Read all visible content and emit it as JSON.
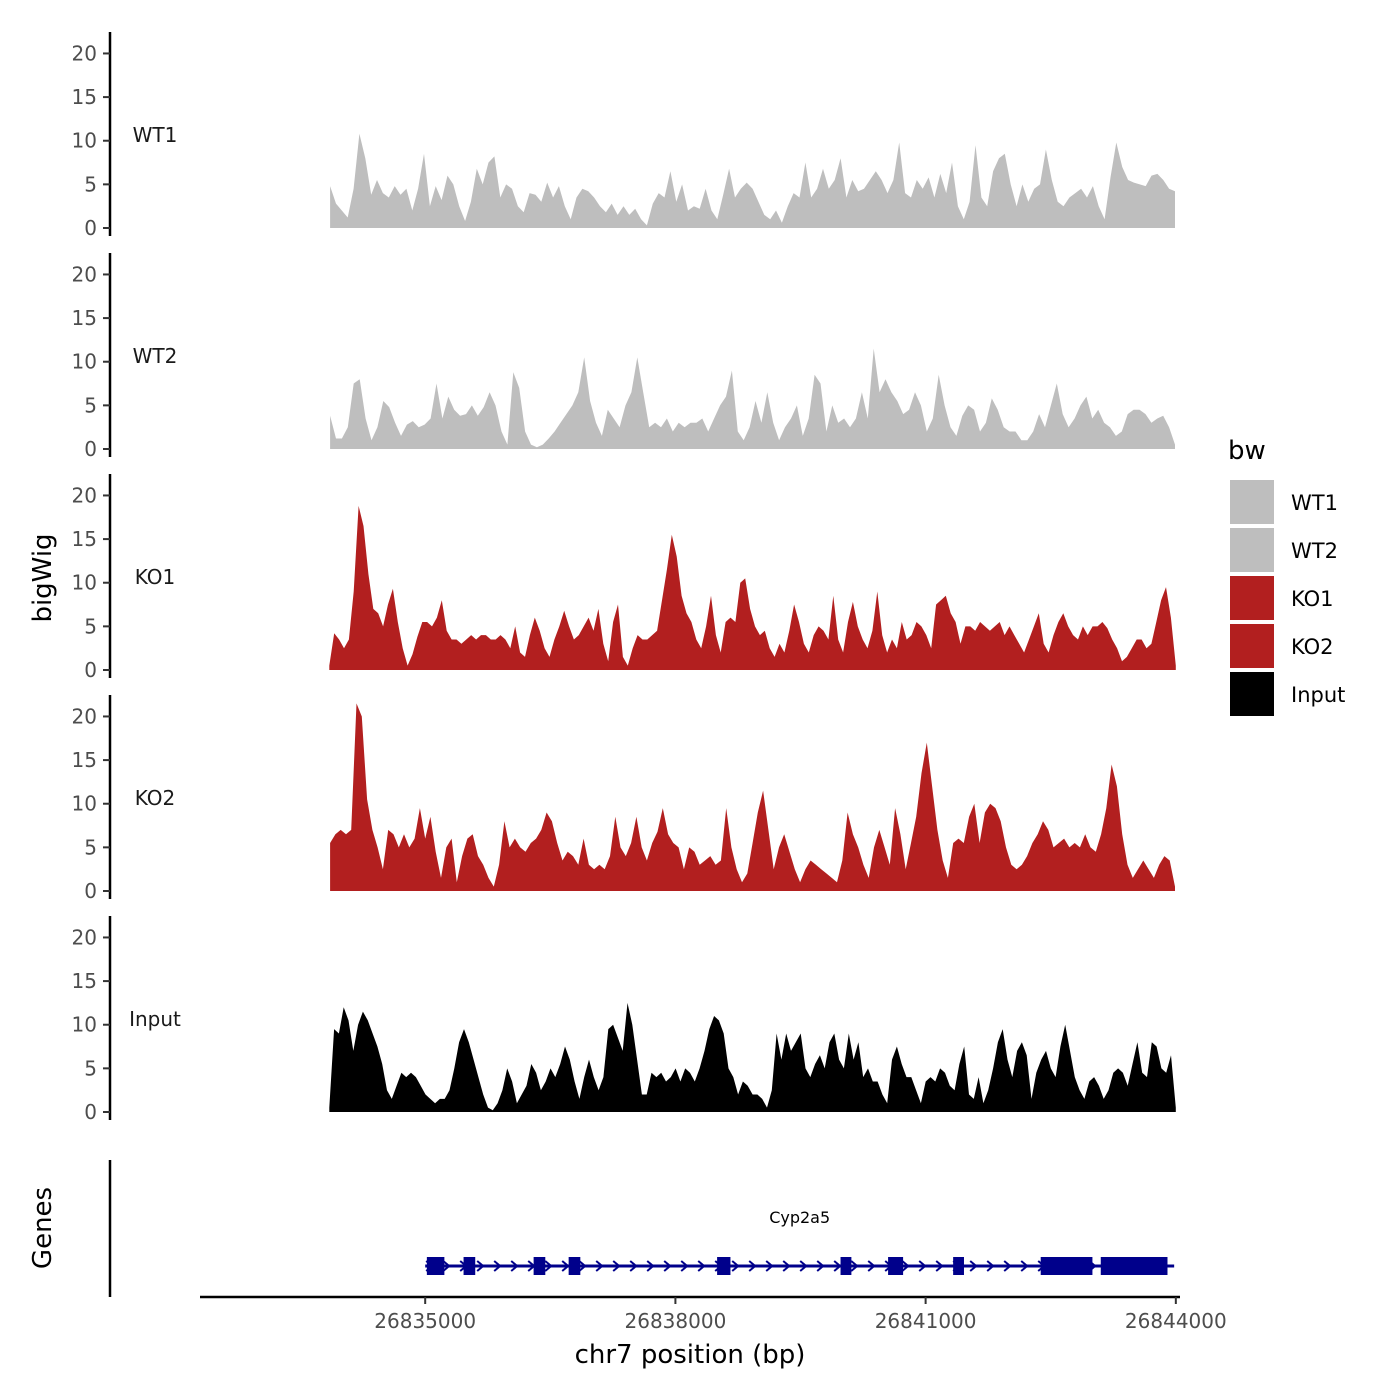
{
  "chart_data": {
    "type": "area",
    "xlabel": "chr7 position (bp)",
    "ylabel": "bigWig",
    "genes_label": "Genes",
    "xlim": [
      26832300,
      26844050
    ],
    "xticks": [
      26835000,
      26838000,
      26841000,
      26844000
    ],
    "xtick_labels": [
      "26835000",
      "26838000",
      "26841000",
      "26844000"
    ],
    "ylim": [
      0,
      22
    ],
    "yticks": [
      0,
      5,
      10,
      15,
      20
    ],
    "ytick_labels": [
      "0",
      "5",
      "10",
      "15",
      "20"
    ],
    "legend": {
      "title": "bw",
      "position": "right",
      "entries": [
        {
          "label": "WT1",
          "color": "#bebebe"
        },
        {
          "label": "WT2",
          "color": "#bebebe"
        },
        {
          "label": "KO1",
          "color": "#b21f1f"
        },
        {
          "label": "KO2",
          "color": "#b21f1f"
        },
        {
          "label": "Input",
          "color": "#000000"
        }
      ]
    },
    "series": [
      {
        "name": "WT1",
        "color": "#bebebe",
        "x_start": 26833860,
        "x_end": 26843990,
        "values": [
          4.8,
          2.8,
          2.0,
          1.2,
          4.5,
          10.8,
          8.0,
          3.8,
          5.5,
          4.0,
          3.5,
          4.8,
          3.8,
          4.5,
          2.0,
          4.5,
          8.5,
          2.5,
          4.8,
          3.2,
          6.0,
          5.0,
          2.5,
          0.8,
          3.0,
          6.8,
          5.0,
          7.5,
          8.2,
          3.5,
          5.0,
          4.5,
          2.5,
          1.8,
          4.0,
          3.8,
          3.0,
          5.2,
          3.5,
          4.8,
          2.5,
          1.0,
          3.5,
          4.5,
          4.2,
          3.5,
          2.5,
          1.8,
          2.8,
          1.5,
          2.5,
          1.5,
          2.2,
          1.0,
          0.3,
          2.8,
          4.0,
          3.5,
          6.5,
          3.0,
          5.0,
          2.0,
          2.5,
          2.2,
          4.5,
          2.0,
          1.0,
          3.8,
          6.8,
          3.5,
          4.5,
          5.2,
          4.5,
          3.0,
          1.5,
          1.0,
          2.0,
          0.6,
          2.5,
          4.0,
          3.5,
          7.5,
          3.5,
          4.5,
          6.8,
          4.5,
          5.5,
          8.0,
          3.5,
          5.5,
          4.2,
          4.5,
          5.5,
          6.5,
          5.5,
          4.0,
          5.5,
          9.8,
          4.0,
          3.5,
          5.5,
          4.5,
          5.8,
          3.5,
          6.2,
          4.0,
          7.5,
          2.5,
          1.0,
          3.0,
          9.5,
          3.5,
          2.5,
          6.5,
          8.0,
          8.5,
          5.0,
          2.5,
          5.0,
          3.0,
          4.5,
          5.0,
          9.0,
          5.5,
          3.0,
          2.5,
          3.5,
          4.0,
          4.5,
          3.5,
          4.8,
          2.5,
          1.0,
          5.8,
          9.8,
          7.0,
          5.5,
          5.2,
          5.0,
          4.8,
          6.0,
          6.2,
          5.5,
          4.5,
          4.2
        ]
      },
      {
        "name": "WT2",
        "color": "#bebebe",
        "x_start": 26833860,
        "x_end": 26843990,
        "values": [
          3.8,
          1.2,
          1.2,
          2.5,
          7.5,
          8.0,
          3.5,
          1.0,
          2.5,
          5.5,
          4.8,
          3.0,
          1.5,
          2.8,
          3.2,
          2.5,
          2.8,
          3.5,
          7.5,
          3.5,
          6.0,
          4.5,
          3.8,
          4.0,
          5.0,
          3.8,
          4.8,
          6.5,
          5.0,
          2.0,
          0.5,
          8.8,
          7.0,
          2.0,
          0.5,
          0.2,
          0.5,
          1.2,
          2.0,
          3.0,
          4.0,
          5.0,
          6.5,
          10.5,
          5.5,
          3.0,
          1.5,
          4.5,
          3.5,
          2.5,
          5.0,
          6.5,
          10.5,
          6.5,
          2.5,
          3.0,
          2.5,
          3.5,
          2.0,
          3.0,
          2.5,
          3.0,
          3.0,
          3.5,
          2.0,
          3.5,
          5.0,
          6.0,
          9.0,
          2.0,
          1.0,
          2.5,
          5.5,
          3.0,
          6.5,
          3.0,
          1.0,
          2.5,
          3.5,
          5.0,
          1.5,
          3.5,
          8.5,
          7.5,
          2.0,
          5.0,
          3.0,
          3.5,
          2.5,
          3.5,
          6.5,
          3.5,
          11.5,
          6.5,
          8.0,
          6.5,
          5.5,
          4.0,
          4.5,
          6.5,
          5.0,
          2.0,
          3.5,
          8.5,
          5.0,
          2.5,
          1.5,
          3.8,
          5.0,
          4.5,
          2.0,
          3.0,
          5.8,
          4.5,
          2.5,
          2.0,
          2.0,
          1.0,
          1.0,
          2.0,
          4.0,
          2.5,
          5.0,
          7.5,
          4.0,
          2.5,
          3.5,
          5.0,
          6.0,
          3.5,
          4.5,
          3.0,
          2.5,
          1.5,
          2.0,
          4.0,
          4.5,
          4.5,
          4.0,
          3.0,
          3.5,
          3.8,
          2.5,
          0.5
        ]
      },
      {
        "name": "KO1",
        "color": "#b21f1f",
        "x_start": 26833850,
        "x_end": 26844000,
        "values": [
          0.5,
          4.2,
          3.5,
          2.5,
          3.5,
          9.0,
          18.8,
          16.5,
          11.0,
          7.0,
          6.5,
          5.0,
          7.5,
          9.3,
          5.5,
          2.5,
          0.5,
          1.8,
          3.8,
          5.5,
          5.5,
          5.0,
          6.0,
          8.0,
          4.5,
          3.5,
          3.5,
          3.0,
          3.5,
          4.0,
          3.5,
          4.0,
          4.0,
          3.5,
          3.5,
          4.0,
          3.5,
          2.5,
          5.0,
          2.0,
          1.5,
          4.0,
          6.0,
          4.5,
          2.5,
          1.5,
          3.5,
          5.0,
          6.8,
          5.0,
          3.5,
          4.0,
          5.0,
          6.0,
          4.5,
          7.0,
          3.0,
          1.0,
          5.5,
          7.5,
          1.5,
          0.5,
          2.5,
          4.0,
          3.5,
          3.5,
          4.0,
          4.5,
          8.0,
          11.5,
          15.5,
          13.0,
          8.5,
          6.5,
          5.5,
          3.5,
          2.5,
          5.0,
          8.5,
          4.0,
          2.0,
          5.5,
          6.0,
          5.5,
          10.0,
          10.5,
          7.0,
          5.0,
          4.0,
          4.5,
          2.5,
          1.5,
          3.0,
          2.0,
          4.5,
          7.5,
          5.5,
          3.0,
          2.0,
          4.0,
          5.0,
          4.5,
          3.5,
          8.5,
          3.5,
          2.0,
          5.5,
          7.8,
          5.0,
          3.5,
          2.5,
          4.5,
          9.0,
          4.0,
          2.0,
          3.5,
          2.5,
          5.5,
          3.5,
          4.0,
          5.5,
          5.0,
          4.0,
          2.5,
          7.5,
          8.0,
          8.5,
          6.5,
          5.5,
          3.0,
          5.0,
          5.0,
          4.5,
          5.5,
          5.0,
          4.5,
          5.0,
          5.5,
          4.0,
          5.0,
          4.0,
          3.0,
          2.0,
          3.5,
          5.0,
          6.5,
          3.0,
          2.0,
          4.0,
          5.5,
          6.5,
          5.0,
          4.0,
          3.5,
          5.0,
          4.0,
          5.0,
          5.0,
          5.5,
          4.8,
          3.5,
          2.5,
          1.0,
          1.5,
          2.5,
          3.5,
          3.5,
          2.5,
          3.0,
          5.5,
          8.0,
          9.5,
          6.0,
          0.5
        ]
      },
      {
        "name": "KO2",
        "color": "#b21f1f",
        "x_start": 26833860,
        "x_end": 26843990,
        "values": [
          5.5,
          6.5,
          7.0,
          6.5,
          7.0,
          21.5,
          20.0,
          10.5,
          7.0,
          5.0,
          2.5,
          7.0,
          6.5,
          5.0,
          6.5,
          5.0,
          6.0,
          9.5,
          6.0,
          8.5,
          4.5,
          1.5,
          5.0,
          6.0,
          1.0,
          4.0,
          6.0,
          6.5,
          4.0,
          3.0,
          1.5,
          0.5,
          3.0,
          8.0,
          5.0,
          6.0,
          5.0,
          4.5,
          5.5,
          6.0,
          7.0,
          9.0,
          8.0,
          5.5,
          3.5,
          4.5,
          4.0,
          3.0,
          6.0,
          3.0,
          2.5,
          3.0,
          2.5,
          4.0,
          8.5,
          5.0,
          4.0,
          5.5,
          8.5,
          5.0,
          3.5,
          5.5,
          6.8,
          9.5,
          6.5,
          5.5,
          5.0,
          2.5,
          5.0,
          4.5,
          3.0,
          3.5,
          4.0,
          3.0,
          3.5,
          9.5,
          5.0,
          2.5,
          1.0,
          2.0,
          5.5,
          9.0,
          11.5,
          7.0,
          2.5,
          5.0,
          6.5,
          4.5,
          2.5,
          1.0,
          2.5,
          3.5,
          3.0,
          2.5,
          2.0,
          1.5,
          1.0,
          3.5,
          9.0,
          6.5,
          5.0,
          3.0,
          1.5,
          5.0,
          7.0,
          5.0,
          3.0,
          9.5,
          6.5,
          2.5,
          5.5,
          8.5,
          13.5,
          17.0,
          12.0,
          7.0,
          3.5,
          1.5,
          5.5,
          6.0,
          5.5,
          8.5,
          10.0,
          5.5,
          9.0,
          10.0,
          9.5,
          8.0,
          5.0,
          3.0,
          2.5,
          3.0,
          4.0,
          5.5,
          6.5,
          8.0,
          7.0,
          5.0,
          5.5,
          6.0,
          5.0,
          5.5,
          5.0,
          6.5,
          5.0,
          4.5,
          6.5,
          9.5,
          14.5,
          12.0,
          6.5,
          3.0,
          1.5,
          2.5,
          3.5,
          2.5,
          1.5,
          3.0,
          4.0,
          3.5,
          0.5
        ]
      },
      {
        "name": "Input",
        "color": "#000000",
        "x_start": 26833850,
        "x_end": 26844000,
        "values": [
          0.5,
          9.5,
          9.0,
          12.0,
          10.5,
          7.0,
          10.0,
          11.5,
          10.5,
          9.0,
          7.5,
          5.5,
          2.5,
          1.5,
          3.0,
          4.5,
          4.0,
          4.5,
          4.0,
          3.0,
          2.0,
          1.5,
          1.0,
          1.5,
          1.5,
          2.5,
          5.0,
          8.0,
          9.5,
          8.0,
          6.0,
          4.0,
          2.0,
          0.5,
          0.2,
          1.0,
          2.5,
          5.0,
          3.5,
          1.0,
          2.0,
          3.0,
          5.5,
          4.5,
          2.5,
          3.5,
          5.0,
          4.0,
          5.5,
          7.5,
          6.0,
          3.5,
          1.5,
          4.0,
          6.0,
          4.0,
          2.5,
          4.0,
          9.5,
          10.0,
          8.5,
          7.0,
          12.5,
          10.0,
          6.0,
          2.0,
          2.0,
          4.5,
          4.0,
          4.5,
          3.5,
          4.0,
          5.0,
          3.5,
          5.0,
          4.5,
          3.5,
          5.0,
          7.0,
          9.5,
          11.0,
          10.5,
          9.0,
          5.0,
          4.0,
          2.0,
          3.5,
          3.0,
          2.0,
          2.0,
          1.5,
          0.5,
          2.5,
          9.0,
          6.0,
          9.0,
          7.0,
          8.0,
          9.0,
          5.0,
          4.0,
          5.5,
          6.5,
          5.0,
          8.0,
          9.0,
          6.0,
          5.0,
          9.0,
          6.0,
          8.0,
          4.0,
          5.0,
          3.5,
          3.5,
          2.0,
          1.0,
          6.0,
          7.5,
          5.5,
          4.0,
          4.0,
          2.5,
          1.0,
          3.5,
          4.0,
          3.5,
          5.0,
          4.5,
          3.0,
          2.5,
          5.5,
          7.5,
          2.0,
          1.5,
          4.0,
          1.0,
          2.5,
          5.0,
          8.0,
          9.5,
          6.0,
          4.0,
          7.0,
          8.0,
          6.5,
          1.5,
          4.5,
          6.0,
          7.0,
          5.0,
          4.0,
          7.5,
          10.0,
          7.0,
          4.0,
          2.5,
          1.5,
          3.5,
          4.0,
          3.0,
          1.5,
          2.5,
          4.5,
          5.0,
          4.5,
          3.0,
          5.5,
          8.0,
          4.5,
          4.0,
          8.0,
          7.5,
          5.0,
          4.5,
          6.5,
          0.5
        ]
      }
    ],
    "gene": {
      "name": "Cyp2a5",
      "strand": "+",
      "color": "#00008b",
      "start": 26835000,
      "end": 26843980,
      "exons": [
        [
          26835020,
          26835230
        ],
        [
          26835460,
          26835600
        ],
        [
          26836300,
          26836440
        ],
        [
          26836720,
          26836860
        ],
        [
          26838500,
          26838660
        ],
        [
          26839980,
          26840110
        ],
        [
          26840550,
          26840730
        ],
        [
          26841330,
          26841460
        ],
        [
          26842380,
          26843000
        ],
        [
          26843100,
          26843900
        ]
      ]
    }
  }
}
